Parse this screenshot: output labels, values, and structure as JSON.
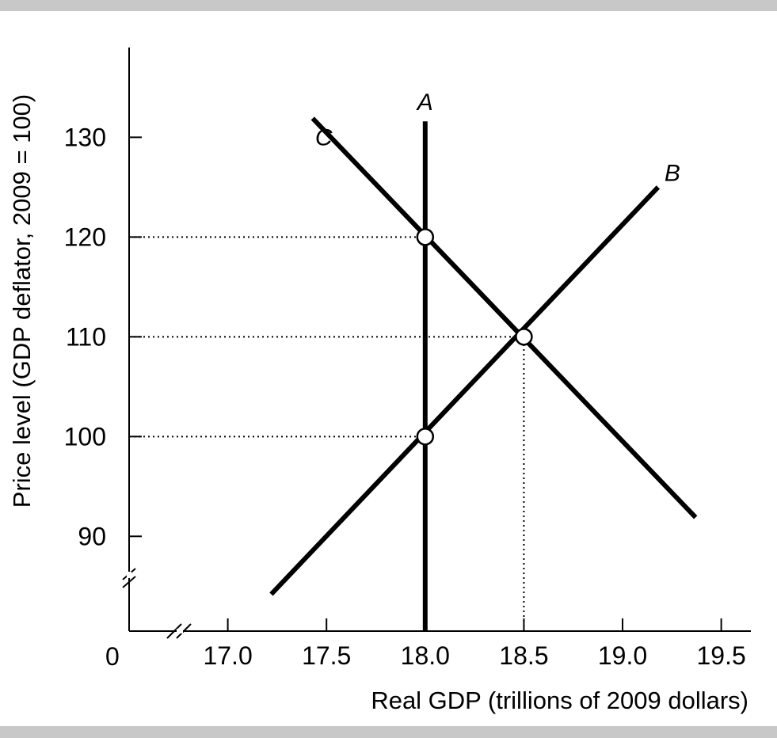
{
  "chart_data": {
    "type": "line",
    "title": "",
    "xlabel": "Real GDP (trillions of 2009 dollars)",
    "ylabel": "Price level (GDP deflator, 2009 = 100)",
    "origin_label": "0",
    "xlim": [
      16.5,
      19.65
    ],
    "ylim": [
      80.5,
      139
    ],
    "x_ticks": [
      17.0,
      17.5,
      18.0,
      18.5,
      19.0,
      19.5
    ],
    "x_tick_labels": [
      "17.0",
      "17.5",
      "18.0",
      "18.5",
      "19.0",
      "19.5"
    ],
    "y_ticks": [
      90,
      100,
      110,
      120,
      130
    ],
    "y_tick_labels": [
      "90",
      "100",
      "110",
      "120",
      "130"
    ],
    "axis_breaks": [
      "x",
      "y"
    ],
    "grid": false,
    "series": [
      {
        "name": "A",
        "points": [
          [
            18.0,
            80.5
          ],
          [
            18.0,
            131.6
          ]
        ]
      },
      {
        "name": "B",
        "points": [
          [
            17.22,
            84.2
          ],
          [
            19.18,
            125.0
          ]
        ]
      },
      {
        "name": "C",
        "points": [
          [
            17.43,
            131.9
          ],
          [
            19.37,
            91.9
          ]
        ]
      }
    ],
    "highlight_points": [
      {
        "x": 18.0,
        "y": 120
      },
      {
        "x": 18.5,
        "y": 110
      },
      {
        "x": 18.0,
        "y": 100
      }
    ],
    "guide_lines": [
      {
        "from": [
          16.5,
          120
        ],
        "to": [
          18.0,
          120
        ]
      },
      {
        "from": [
          16.5,
          110
        ],
        "to": [
          18.5,
          110
        ]
      },
      {
        "from": [
          16.5,
          100
        ],
        "to": [
          18.0,
          100
        ]
      },
      {
        "from": [
          18.5,
          80.5
        ],
        "to": [
          18.5,
          110
        ]
      }
    ],
    "colors": {
      "line": "#000000",
      "background": "#ffffff",
      "frame_bars": "#c8c8c8"
    }
  }
}
